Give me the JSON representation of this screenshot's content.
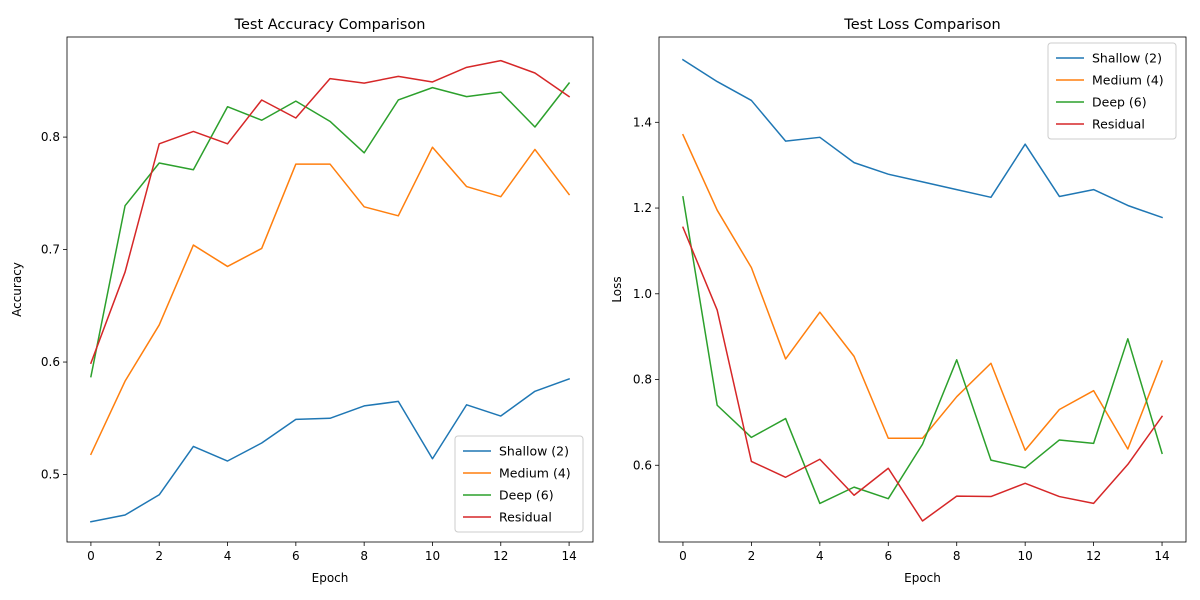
{
  "chart_data": [
    {
      "type": "line",
      "title": "Test Accuracy Comparison",
      "xlabel": "Epoch",
      "ylabel": "Accuracy",
      "xlim": [
        -0.7,
        14.7
      ],
      "ylim": [
        0.44,
        0.889
      ],
      "xticks": [
        0,
        2,
        4,
        6,
        8,
        10,
        12,
        14
      ],
      "xtick_labels": [
        "0",
        "2",
        "4",
        "6",
        "8",
        "10",
        "12",
        "14"
      ],
      "yticks": [
        0.5,
        0.6,
        0.7,
        0.8
      ],
      "ytick_labels": [
        "0.5",
        "0.6",
        "0.7",
        "0.8"
      ],
      "grid": false,
      "legend_position": "lower-right",
      "x": [
        0,
        1,
        2,
        3,
        4,
        5,
        6,
        7,
        8,
        9,
        10,
        11,
        12,
        13,
        14
      ],
      "series": [
        {
          "name": "Shallow (2)",
          "color": "#1f77b4",
          "values": [
            0.458,
            0.464,
            0.482,
            0.525,
            0.512,
            0.528,
            0.549,
            0.55,
            0.561,
            0.565,
            0.514,
            0.562,
            0.552,
            0.574,
            0.585
          ]
        },
        {
          "name": "Medium (4)",
          "color": "#ff7f0e",
          "values": [
            0.518,
            0.583,
            0.633,
            0.704,
            0.685,
            0.701,
            0.776,
            0.776,
            0.738,
            0.73,
            0.791,
            0.756,
            0.747,
            0.789,
            0.749
          ]
        },
        {
          "name": "Deep (6)",
          "color": "#2ca02c",
          "values": [
            0.587,
            0.739,
            0.777,
            0.771,
            0.827,
            0.815,
            0.832,
            0.814,
            0.786,
            0.833,
            0.844,
            0.836,
            0.84,
            0.809,
            0.848
          ]
        },
        {
          "name": "Residual",
          "color": "#d62728",
          "values": [
            0.599,
            0.68,
            0.794,
            0.805,
            0.794,
            0.833,
            0.817,
            0.852,
            0.848,
            0.854,
            0.849,
            0.862,
            0.868,
            0.857,
            0.836
          ]
        }
      ]
    },
    {
      "type": "line",
      "title": "Test Loss Comparison",
      "xlabel": "Epoch",
      "ylabel": "Loss",
      "xlim": [
        -0.7,
        14.7
      ],
      "ylim": [
        0.421,
        1.599
      ],
      "xticks": [
        0,
        2,
        4,
        6,
        8,
        10,
        12,
        14
      ],
      "xtick_labels": [
        "0",
        "2",
        "4",
        "6",
        "8",
        "10",
        "12",
        "14"
      ],
      "yticks": [
        0.6,
        0.8,
        1.0,
        1.2,
        1.4
      ],
      "ytick_labels": [
        "0.6",
        "0.8",
        "1.0",
        "1.2",
        "1.4"
      ],
      "grid": false,
      "legend_position": "upper-right",
      "x": [
        0,
        1,
        2,
        3,
        4,
        5,
        6,
        7,
        8,
        9,
        10,
        11,
        12,
        13,
        14
      ],
      "series": [
        {
          "name": "Shallow (2)",
          "color": "#1f77b4",
          "values": [
            1.546,
            1.495,
            1.451,
            1.356,
            1.365,
            1.306,
            1.279,
            1.261,
            1.243,
            1.225,
            1.349,
            1.227,
            1.243,
            1.206,
            1.178
          ]
        },
        {
          "name": "Medium (4)",
          "color": "#ff7f0e",
          "values": [
            1.371,
            1.195,
            1.061,
            0.848,
            0.957,
            0.854,
            0.663,
            0.663,
            0.76,
            0.838,
            0.635,
            0.73,
            0.774,
            0.638,
            0.843
          ]
        },
        {
          "name": "Deep (6)",
          "color": "#2ca02c",
          "values": [
            1.226,
            0.74,
            0.665,
            0.709,
            0.511,
            0.549,
            0.522,
            0.649,
            0.846,
            0.612,
            0.594,
            0.659,
            0.651,
            0.895,
            0.628
          ]
        },
        {
          "name": "Residual",
          "color": "#d62728",
          "values": [
            1.155,
            0.962,
            0.609,
            0.572,
            0.614,
            0.53,
            0.593,
            0.47,
            0.528,
            0.527,
            0.558,
            0.527,
            0.511,
            0.602,
            0.714
          ]
        }
      ]
    }
  ]
}
